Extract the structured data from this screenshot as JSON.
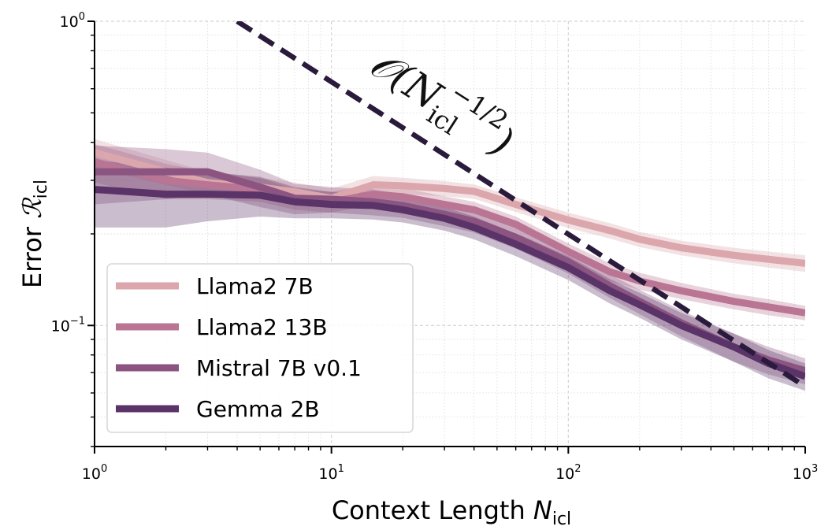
{
  "chart_data": {
    "type": "line",
    "xscale": "log",
    "yscale": "log",
    "xlim": [
      1,
      1000
    ],
    "ylim": [
      0.04,
      1.0
    ],
    "grid": true,
    "xlabel": {
      "main": "Context Length ",
      "var": "N",
      "sub": "icl"
    },
    "ylabel": {
      "main": "Error ",
      "var": "ℛ",
      "sub": "icl"
    },
    "xticks": [
      {
        "value": 1,
        "base": "10",
        "exp": "0"
      },
      {
        "value": 10,
        "base": "10",
        "exp": "1"
      },
      {
        "value": 100,
        "base": "10",
        "exp": "2"
      },
      {
        "value": 1000,
        "base": "10",
        "exp": "3"
      }
    ],
    "yticks": [
      {
        "value": 0.1,
        "base": "10",
        "exp": "−1"
      },
      {
        "value": 1,
        "base": "10",
        "exp": "0"
      }
    ],
    "legend_position": "lower-left",
    "series": [
      {
        "name": "Llama2 7B",
        "color": "#dba6ac",
        "x": [
          1,
          2,
          3,
          5,
          7,
          10,
          15,
          20,
          30,
          40,
          60,
          100,
          150,
          200,
          300,
          500,
          700,
          1000
        ],
        "y": [
          0.37,
          0.32,
          0.295,
          0.285,
          0.275,
          0.262,
          0.29,
          0.288,
          0.282,
          0.276,
          0.25,
          0.222,
          0.205,
          0.192,
          0.18,
          0.17,
          0.165,
          0.16
        ],
        "band": [
          0.04,
          0.03,
          0.025,
          0.02,
          0.02,
          0.02,
          0.02,
          0.018,
          0.016,
          0.015,
          0.014,
          0.013,
          0.012,
          0.011,
          0.01,
          0.01,
          0.01,
          0.01
        ]
      },
      {
        "name": "Llama2 13B",
        "color": "#b97593",
        "x": [
          1,
          2,
          3,
          5,
          7,
          10,
          15,
          20,
          30,
          40,
          60,
          100,
          150,
          200,
          300,
          500,
          700,
          1000
        ],
        "y": [
          0.345,
          0.3,
          0.29,
          0.28,
          0.26,
          0.255,
          0.27,
          0.265,
          0.25,
          0.24,
          0.215,
          0.175,
          0.15,
          0.14,
          0.13,
          0.12,
          0.115,
          0.11
        ],
        "band": [
          0.05,
          0.04,
          0.03,
          0.025,
          0.02,
          0.02,
          0.02,
          0.018,
          0.016,
          0.015,
          0.013,
          0.011,
          0.01,
          0.009,
          0.008,
          0.007,
          0.007,
          0.006
        ]
      },
      {
        "name": "Mistral 7B v0.1",
        "color": "#8c5481",
        "x": [
          1,
          2,
          3,
          5,
          7,
          10,
          15,
          20,
          30,
          40,
          60,
          100,
          150,
          200,
          300,
          500,
          700,
          1000
        ],
        "y": [
          0.32,
          0.32,
          0.32,
          0.285,
          0.262,
          0.26,
          0.255,
          0.248,
          0.232,
          0.22,
          0.195,
          0.162,
          0.135,
          0.12,
          0.102,
          0.085,
          0.077,
          0.071
        ],
        "band": [
          0.07,
          0.06,
          0.05,
          0.04,
          0.03,
          0.025,
          0.025,
          0.022,
          0.02,
          0.018,
          0.016,
          0.014,
          0.012,
          0.011,
          0.01,
          0.009,
          0.008,
          0.007
        ]
      },
      {
        "name": "Gemma 2B",
        "color": "#5a3468",
        "x": [
          1,
          2,
          3,
          5,
          7,
          10,
          15,
          20,
          30,
          40,
          60,
          100,
          150,
          200,
          300,
          500,
          700,
          1000
        ],
        "y": [
          0.28,
          0.27,
          0.27,
          0.268,
          0.255,
          0.25,
          0.248,
          0.24,
          0.225,
          0.21,
          0.185,
          0.155,
          0.13,
          0.117,
          0.1,
          0.085,
          0.075,
          0.068
        ],
        "band": [
          0.07,
          0.06,
          0.05,
          0.04,
          0.03,
          0.025,
          0.025,
          0.022,
          0.02,
          0.018,
          0.016,
          0.014,
          0.012,
          0.011,
          0.01,
          0.009,
          0.008,
          0.007
        ]
      }
    ],
    "reference_line": {
      "label": "𝒪(N_icl^{−1/2})",
      "label_parts": {
        "open": "𝒪(",
        "var": "N",
        "sub": "icl",
        "sup": "−1/2",
        "close": ")"
      },
      "color": "#2a1a3b",
      "x": [
        4,
        1000
      ],
      "y": [
        1.0,
        0.063
      ]
    }
  }
}
